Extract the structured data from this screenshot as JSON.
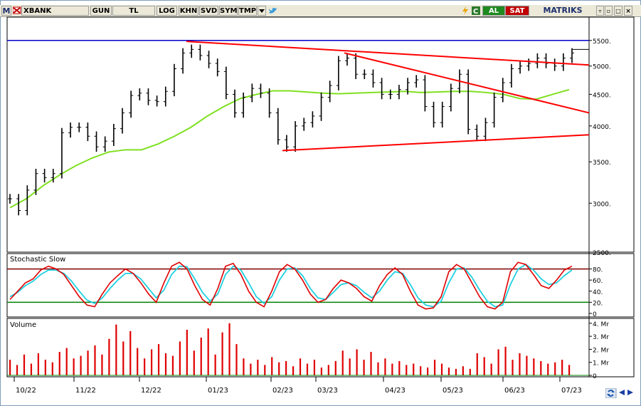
{
  "toolbar": {
    "logo": "M",
    "symbol": "XBANK",
    "period": "GUN",
    "currency": "TL",
    "log": "LOG",
    "khn": "KHN",
    "svd": "SVD",
    "sym": "SYM",
    "tmp": "TMP",
    "buy": "AL",
    "sell": "SAT",
    "brand": "MATRIKS",
    "brand_accent": "#1d2f6f"
  },
  "nav": {
    "scroll_icon": "rotate-arrows-icon",
    "prev_icon": "triangle-left-icon",
    "next_icon": "triangle-right-icon"
  },
  "chart_data": {
    "type": "ohlc",
    "xlabels": [
      "10/22",
      "11/22",
      "12/22",
      "01/23",
      "02/23",
      "03/23",
      "04/23",
      "05/23",
      "06/23",
      "07/23"
    ],
    "price_axis": {
      "scale": "log",
      "ticks": [
        "5500.",
        "5000.",
        "4500.",
        "4000.",
        "3500.",
        "3000.",
        "2500."
      ],
      "tick_values": [
        5500,
        5000,
        4500,
        4000,
        3500,
        3000,
        2500
      ],
      "ylim": [
        2500,
        6000
      ]
    },
    "stochastic": {
      "title": "Stochastic Slow",
      "ticks": [
        "80.",
        "60.",
        "40.",
        "20.",
        "0"
      ],
      "tick_values": [
        80,
        60,
        40,
        20,
        0
      ],
      "ylim": [
        0,
        100
      ],
      "upper_band": 80,
      "lower_band": 20
    },
    "volume": {
      "title": "Volume",
      "ticks": [
        "4. Mr",
        "3. Mr",
        "2. Mr",
        "1. Mr",
        "0"
      ],
      "tick_values": [
        4,
        3,
        2,
        1,
        0
      ],
      "ylim": [
        0,
        4.1
      ]
    },
    "horizontal_level": 5500,
    "closes": [
      3050,
      2920,
      3150,
      3350,
      3300,
      3350,
      3900,
      3980,
      3980,
      3850,
      3700,
      3780,
      3960,
      4200,
      4480,
      4520,
      4400,
      4380,
      4550,
      4950,
      5250,
      5320,
      5200,
      5050,
      4900,
      4500,
      4200,
      4450,
      4600,
      4520,
      4200,
      3800,
      3700,
      4000,
      4050,
      4150,
      4450,
      4650,
      5100,
      5150,
      4850,
      4850,
      4700,
      4500,
      4500,
      4580,
      4700,
      4750,
      4300,
      4050,
      4300,
      4600,
      4850,
      3950,
      3850,
      4050,
      4450,
      4700,
      4950,
      5000,
      5050,
      5150,
      5050,
      5000,
      5150,
      5250
    ],
    "ma": [
      2950,
      3050,
      3200,
      3330,
      3450,
      3550,
      3630,
      3660,
      3660,
      3740,
      3850,
      3980,
      4150,
      4300,
      4430,
      4500,
      4560,
      4560,
      4540,
      4520,
      4510,
      4520,
      4530,
      4540,
      4550,
      4530,
      4540,
      4550,
      4550,
      4530,
      4500,
      4430,
      4420,
      4500,
      4580
    ],
    "trendlines": [
      {
        "p1": [
          "12/22",
          5480
        ],
        "p2": [
          "07/23",
          5020
        ],
        "color": "#ff0000"
      },
      {
        "p1": [
          "03/23",
          5250
        ],
        "p2": [
          "07/23",
          4200
        ],
        "color": "#ff0000"
      },
      {
        "p1": [
          "02/23",
          3650
        ],
        "p2": [
          "07/23",
          3870
        ],
        "color": "#ff0000"
      }
    ],
    "stoch_k": [
      25,
      40,
      55,
      62,
      78,
      85,
      80,
      70,
      50,
      30,
      15,
      12,
      35,
      55,
      68,
      80,
      72,
      55,
      35,
      20,
      55,
      85,
      92,
      80,
      50,
      25,
      15,
      45,
      85,
      90,
      70,
      40,
      20,
      12,
      40,
      75,
      88,
      80,
      60,
      35,
      20,
      25,
      45,
      60,
      55,
      45,
      30,
      22,
      50,
      70,
      82,
      70,
      40,
      15,
      8,
      10,
      30,
      75,
      88,
      80,
      55,
      30,
      12,
      8,
      20,
      75,
      92,
      88,
      70,
      50,
      45,
      60,
      78,
      85
    ],
    "stoch_d": [
      30,
      38,
      50,
      58,
      70,
      78,
      78,
      72,
      58,
      40,
      24,
      18,
      28,
      45,
      60,
      72,
      72,
      62,
      45,
      28,
      42,
      70,
      85,
      84,
      62,
      38,
      22,
      35,
      70,
      85,
      78,
      55,
      30,
      18,
      30,
      60,
      80,
      82,
      68,
      45,
      28,
      25,
      38,
      52,
      55,
      50,
      38,
      28,
      40,
      60,
      75,
      72,
      52,
      28,
      15,
      12,
      22,
      55,
      80,
      82,
      65,
      42,
      22,
      12,
      15,
      52,
      80,
      88,
      78,
      62,
      52,
      55,
      68,
      78
    ],
    "volume_values": [
      1.2,
      0.8,
      1.6,
      0.9,
      1.7,
      1.2,
      1.0,
      1.8,
      2.1,
      1.3,
      1.5,
      1.9,
      2.3,
      1.6,
      2.8,
      3.9,
      2.6,
      3.4,
      2.1,
      1.3,
      2.0,
      2.4,
      1.7,
      1.5,
      2.6,
      3.5,
      1.9,
      2.9,
      3.6,
      1.6,
      3.3,
      4.0,
      2.4,
      1.3,
      0.9,
      1.2,
      0.8,
      1.4,
      1.0,
      1.1,
      0.7,
      1.3,
      0.9,
      1.2,
      0.6,
      0.8,
      1.1,
      1.9,
      1.3,
      2.0,
      1.2,
      1.8,
      1.0,
      1.3,
      0.9,
      1.1,
      0.8,
      0.9,
      0.7,
      0.6,
      1.2,
      0.9,
      0.6,
      0.5,
      0.7,
      0.5,
      1.7,
      1.4,
      0.9,
      2.0,
      2.2,
      1.2,
      1.7,
      1.5,
      1.3,
      1.1,
      0.9,
      1.0,
      1.2,
      0.8
    ]
  }
}
